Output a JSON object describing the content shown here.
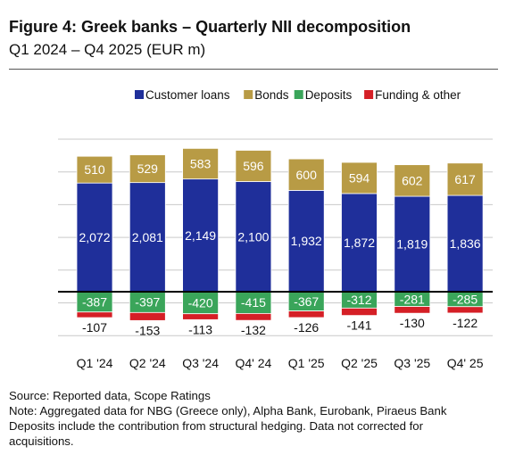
{
  "title": "Figure 4: Greek banks – Quarterly NII decomposition",
  "subtitle": "Q1 2024 – Q4 2025 (EUR m)",
  "footer": {
    "source": "Source: Reported data, Scope Ratings",
    "note_line1": "Note: Aggregated data for NBG (Greece only), Alpha Bank, Eurobank, Piraeus Bank",
    "note_line2": "Deposits include the contribution from structural hedging. Data not corrected for",
    "note_line3": "acquisitions."
  },
  "chart_data": {
    "type": "bar",
    "stacked": true,
    "categories": [
      "Q1 '24",
      "Q2 '24",
      "Q3 '24",
      "Q4' 24",
      "Q1 '25",
      "Q2 '25",
      "Q3 '25",
      "Q4' 25"
    ],
    "series": [
      {
        "name": "Customer loans",
        "color": "#1f2f9a",
        "values": [
          2072,
          2081,
          2149,
          2100,
          1932,
          1872,
          1819,
          1836
        ],
        "labels": [
          "2,072",
          "2,081",
          "2,149",
          "2,100",
          "1,932",
          "1,872",
          "1,819",
          "1,836"
        ]
      },
      {
        "name": "Bonds",
        "color": "#b89b45",
        "values": [
          510,
          529,
          583,
          596,
          600,
          594,
          602,
          617
        ],
        "labels": [
          "510",
          "529",
          "583",
          "596",
          "600",
          "594",
          "602",
          "617"
        ]
      },
      {
        "name": "Deposits",
        "color": "#3aa55a",
        "values": [
          -387,
          -397,
          -420,
          -415,
          -367,
          -312,
          -281,
          -285
        ],
        "labels": [
          "-387",
          "-397",
          "-420",
          "-415",
          "-367",
          "-312",
          "-281",
          "-285"
        ]
      },
      {
        "name": "Funding & other",
        "color": "#d51f26",
        "values": [
          -107,
          -153,
          -113,
          -132,
          -126,
          -141,
          -130,
          -122
        ],
        "labels": [
          "-107",
          "-153",
          "-113",
          "-132",
          "-126",
          "-141",
          "-130",
          "-122"
        ]
      }
    ],
    "legend_position": "top-right",
    "grid": true
  }
}
